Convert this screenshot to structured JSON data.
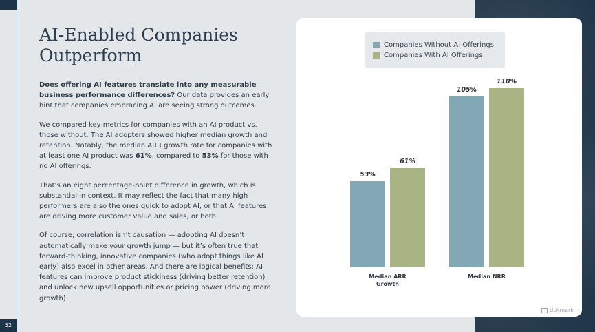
{
  "page": {
    "number": "52",
    "title": "AI-Enabled Companies Outperform",
    "paragraphs": [
      {
        "bold": "Does offering AI features translate into any measurable business performance differences?",
        "text": " Our data provides an early hint that companies embracing AI are seeing strong outcomes."
      },
      {
        "t1": "We compared key metrics for companies with an AI product vs. those without. The AI adopters showed higher median growth and retention. Notably, the median ARR growth rate for companies with at least one AI product was ",
        "b1": "61%",
        "t2": ", compared to ",
        "b2": "53%",
        "t3": " for those with no AI offerings."
      },
      {
        "text": "That’s an eight percentage-point difference in growth, which is substantial in context. It may reflect the fact that many high performers are also the ones quick to adopt AI, or that AI features are driving more customer value and sales, or both."
      },
      {
        "text": "Of course, correlation isn’t causation — adopting AI doesn’t automatically make your growth jump — but it’s often true that forward-thinking, innovative companies (who adopt things like AI early) also excel in other areas. And there are logical benefits: AI features can improve product stickiness (driving better retention) and unlock new upsell opportunities or pricing power (driving more growth)."
      }
    ],
    "brand": "tickmark"
  },
  "chart_data": {
    "type": "bar",
    "categories": [
      "Median ARR Growth",
      "Median NRR"
    ],
    "series": [
      {
        "name": "Companies Without AI Offerings",
        "values": [
          53,
          105
        ],
        "labels": [
          "53%",
          "105%"
        ],
        "color": "#82a8b6"
      },
      {
        "name": "Companies With AI Offerings",
        "values": [
          61,
          110
        ],
        "labels": [
          "61%",
          "110%"
        ],
        "color": "#a8b484"
      }
    ],
    "unit": "%",
    "ylim": [
      0,
      115
    ],
    "grid": false,
    "legend": "top-center"
  }
}
